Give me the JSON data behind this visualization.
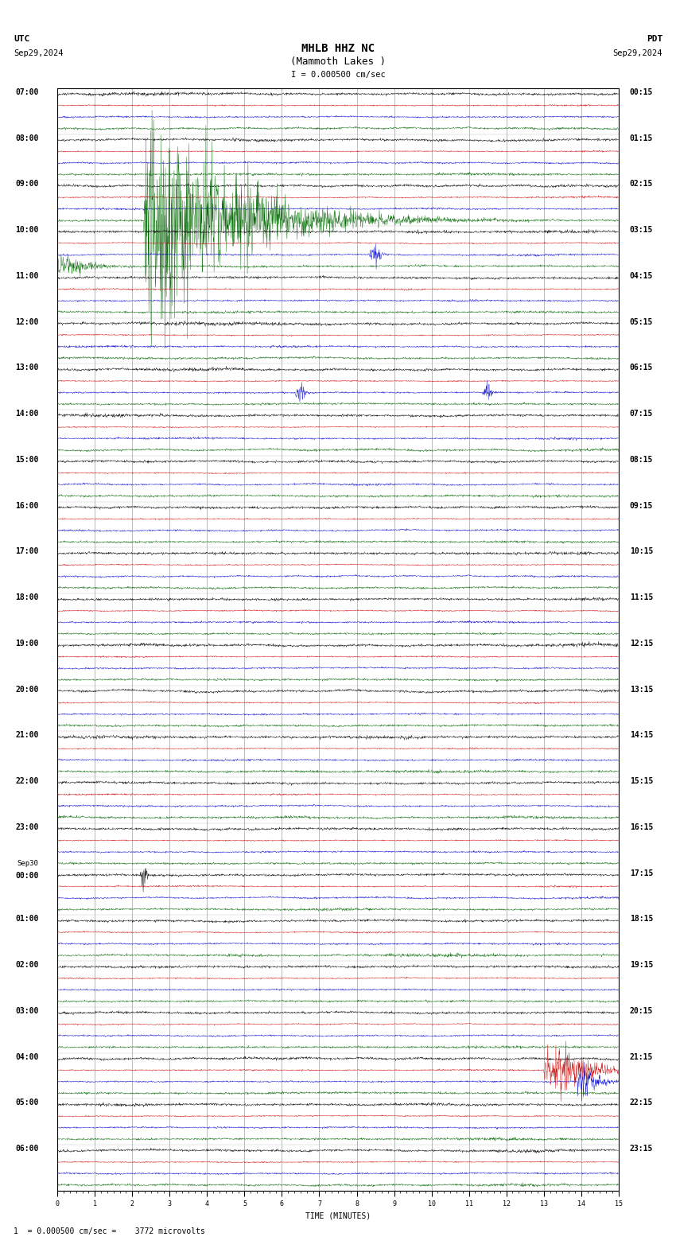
{
  "title_line1": "MHLB HHZ NC",
  "title_line2": "(Mammoth Lakes )",
  "scale_label": "I = 0.000500 cm/sec",
  "utc_label": "UTC",
  "pdt_label": "PDT",
  "date_left": "Sep29,2024",
  "date_right": "Sep29,2024",
  "bottom_label": "1  = 0.000500 cm/sec =    3772 microvolts",
  "xlabel": "TIME (MINUTES)",
  "bg_color": "#ffffff",
  "trace_colors": [
    "#000000",
    "#cc0000",
    "#0000cc",
    "#006600"
  ],
  "grid_color": "#888888",
  "traces_per_row": 4,
  "n_hour_rows": 24,
  "xmin": 0,
  "xmax": 15,
  "title_fontsize": 10,
  "label_fontsize": 7,
  "axis_fontsize": 7,
  "tick_fontsize": 6,
  "noise_amplitude": 0.3,
  "red_amplitude": 0.15,
  "blue_amplitude": 0.2,
  "green_amplitude": 0.25,
  "earthquake_amplitude": 15.0,
  "left_labels": [
    "07:00",
    "08:00",
    "09:00",
    "10:00",
    "11:00",
    "12:00",
    "13:00",
    "14:00",
    "15:00",
    "16:00",
    "17:00",
    "18:00",
    "19:00",
    "20:00",
    "21:00",
    "22:00",
    "23:00",
    "00:00",
    "01:00",
    "02:00",
    "03:00",
    "04:00",
    "05:00",
    "06:00"
  ],
  "right_labels": [
    "00:15",
    "01:15",
    "02:15",
    "03:15",
    "04:15",
    "05:15",
    "06:15",
    "07:15",
    "08:15",
    "09:15",
    "10:15",
    "11:15",
    "12:15",
    "13:15",
    "14:15",
    "15:15",
    "16:15",
    "17:15",
    "18:15",
    "19:15",
    "20:15",
    "21:15",
    "22:15",
    "23:15"
  ]
}
